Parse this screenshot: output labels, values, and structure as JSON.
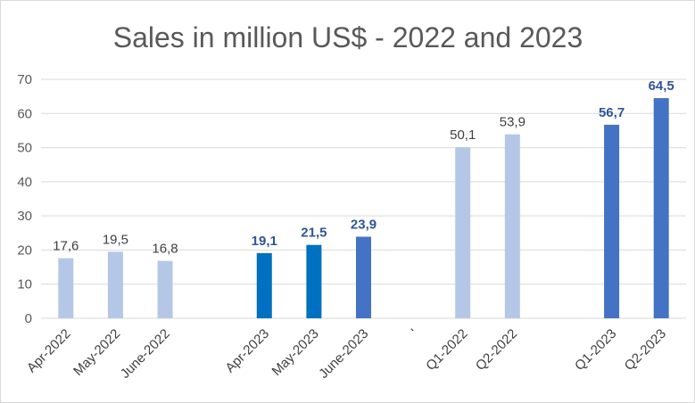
{
  "chart_data": {
    "type": "bar",
    "title": "Sales in million US$ - 2022 and 2023",
    "xlabel": "",
    "ylabel": "",
    "ylim": [
      0,
      70
    ],
    "yticks": [
      0,
      10,
      20,
      30,
      40,
      50,
      60,
      70
    ],
    "yticks_text": [
      "0",
      "10",
      "20",
      "30",
      "40",
      "50",
      "60",
      "70"
    ],
    "grid": true,
    "legend": "none",
    "categories": [
      "Apr-2022",
      "May-2022",
      "June-2022",
      "",
      "Apr-2023",
      "May-2023",
      "June-2023",
      "'",
      "Q1-2022",
      "Q2-2022",
      "",
      "Q1-2023",
      "Q2-2023"
    ],
    "values": [
      17.6,
      19.5,
      16.8,
      null,
      19.1,
      21.5,
      23.9,
      null,
      50.1,
      53.9,
      null,
      56.7,
      64.5
    ],
    "data_labels": [
      "17,6",
      "19,5",
      "16,8",
      "",
      "19,1",
      "21,5",
      "23,9",
      "",
      "50,1",
      "53,9",
      "",
      "56,7",
      "64,5"
    ],
    "bar_colors": [
      "#b4c7e7",
      "#b4c7e7",
      "#b4c7e7",
      "",
      "#0070c0",
      "#0070c0",
      "#4472c4",
      "",
      "#b4c7e7",
      "#b4c7e7",
      "",
      "#4472c4",
      "#4472c4"
    ],
    "label_bold": [
      false,
      false,
      false,
      false,
      true,
      true,
      true,
      false,
      false,
      false,
      false,
      true,
      true
    ]
  }
}
